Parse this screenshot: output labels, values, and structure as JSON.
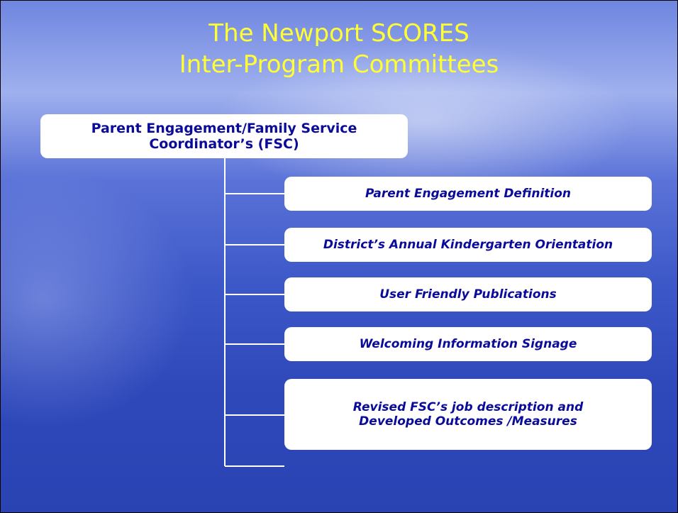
{
  "title": [
    "The Newport SCORES",
    "Inter-Program Committees"
  ],
  "root": {
    "label": [
      "Parent Engagement/Family Service",
      "Coordinator’s (FSC)"
    ]
  },
  "children": [
    {
      "label": [
        "Parent Engagement Definition"
      ]
    },
    {
      "label": [
        "District’s Annual  Kindergarten Orientation"
      ]
    },
    {
      "label": [
        "User Friendly Publications"
      ]
    },
    {
      "label": [
        "Welcoming Information Signage"
      ]
    },
    {
      "label": [
        "Revised FSC’s job description  and",
        "Developed Outcomes /Measures"
      ]
    }
  ]
}
